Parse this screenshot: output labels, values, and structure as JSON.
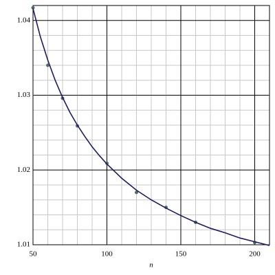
{
  "chart_data": {
    "type": "scatter",
    "x_label": "n",
    "xlim": [
      50,
      210
    ],
    "ylim": [
      1.01,
      1.042
    ],
    "xticks": [
      50,
      100,
      150,
      200
    ],
    "yticks": [
      1.01,
      1.02,
      1.03,
      1.04
    ],
    "x_minor_grid": [
      60,
      70,
      80,
      90,
      110,
      120,
      130,
      140,
      160,
      170,
      180,
      190
    ],
    "y_minor_grid": [
      1.012,
      1.014,
      1.016,
      1.018,
      1.022,
      1.024,
      1.026,
      1.028,
      1.032,
      1.034,
      1.036,
      1.038
    ],
    "grid": true,
    "series": [
      {
        "type": "scatter",
        "color": "#4f6f62",
        "x": [
          50,
          60,
          70,
          80,
          100,
          120,
          140,
          160,
          200
        ],
        "values": [
          1.0417,
          1.034,
          1.0296,
          1.0259,
          1.0209,
          1.017,
          1.015,
          1.013,
          1.0103
        ]
      },
      {
        "type": "line",
        "color": "#1c1a66",
        "x": [
          50,
          55,
          60,
          65,
          70,
          75,
          80,
          85,
          90,
          95,
          100,
          110,
          120,
          130,
          140,
          150,
          160,
          170,
          180,
          190,
          200,
          210
        ],
        "values": [
          1.0416,
          1.0378,
          1.0347,
          1.032,
          1.0297,
          1.0277,
          1.026,
          1.0245,
          1.0231,
          1.0219,
          1.0208,
          1.0189,
          1.0173,
          1.016,
          1.0149,
          1.0139,
          1.013,
          1.0122,
          1.0116,
          1.0109,
          1.0104,
          1.0099
        ]
      }
    ]
  }
}
